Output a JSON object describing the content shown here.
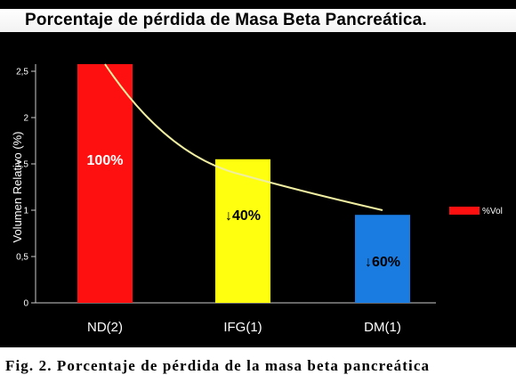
{
  "caption": "Fig. 2.  Porcentaje de pérdida de la masa beta pancreática",
  "colors": {
    "background": "#000000",
    "curve": "#f0eea0",
    "axis": "#cccccc",
    "text": "#ffffff"
  },
  "chart_data": {
    "type": "bar",
    "title": "Porcentaje de pérdida de Masa Beta Pancreática.",
    "xlabel": "",
    "ylabel": "Volumen Relativo (%)",
    "ylim": [
      0,
      2.5
    ],
    "yticks": [
      "0",
      "0,5",
      "1",
      "1,5",
      "2",
      "2,5"
    ],
    "categories": [
      "ND(2)",
      "IFG(1)",
      "DM(1)"
    ],
    "values": [
      2.6,
      1.55,
      0.95
    ],
    "colors": [
      "#ff1010",
      "#ffff10",
      "#1a7be0"
    ],
    "bar_labels": [
      "100%",
      "↓40%",
      "↓60%"
    ],
    "bar_label_colors": [
      "#ffffff",
      "#000000",
      "#000000"
    ],
    "legend": {
      "position": "right",
      "entries": [
        {
          "label": "%Vol",
          "color": "#ff1010"
        }
      ]
    },
    "trend_curve": {
      "x": [
        "ND(2)",
        "IFG(1)",
        "DM(1)"
      ],
      "y": [
        2.6,
        1.38,
        1.0
      ]
    },
    "grid": false
  }
}
